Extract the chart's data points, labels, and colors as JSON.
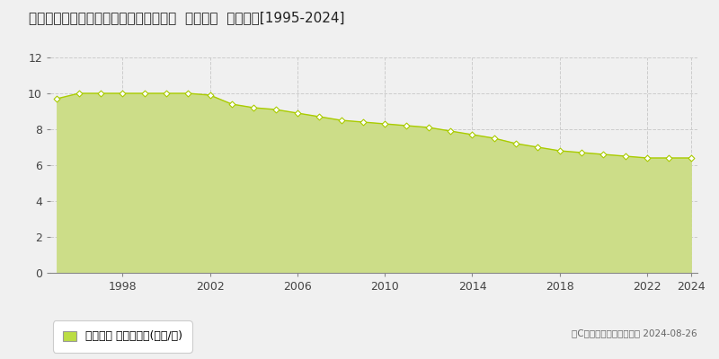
{
  "title": "鳳取県鳳取市馬場字東屋敷２７４番２外  地価公示  地価推移[1995-2024]",
  "years": [
    1995,
    1996,
    1997,
    1998,
    1999,
    2000,
    2001,
    2002,
    2003,
    2004,
    2005,
    2006,
    2007,
    2008,
    2009,
    2010,
    2011,
    2012,
    2013,
    2014,
    2015,
    2016,
    2017,
    2018,
    2019,
    2020,
    2021,
    2022,
    2023,
    2024
  ],
  "values": [
    9.7,
    10.0,
    10.0,
    10.0,
    10.0,
    10.0,
    10.0,
    9.9,
    9.4,
    9.2,
    9.1,
    8.9,
    8.7,
    8.5,
    8.4,
    8.3,
    8.2,
    8.1,
    7.9,
    7.7,
    7.5,
    7.2,
    7.0,
    6.8,
    6.7,
    6.6,
    6.5,
    6.4,
    6.4,
    6.4
  ],
  "line_color": "#aacc00",
  "fill_color": "#ccdd88",
  "marker_facecolor": "#ffffff",
  "marker_edgecolor": "#aacc00",
  "background_color": "#f0f0f0",
  "plot_bg_color": "#f0f0f0",
  "grid_color": "#cccccc",
  "ylim": [
    0,
    12
  ],
  "yticks": [
    0,
    2,
    4,
    6,
    8,
    10,
    12
  ],
  "xticks": [
    1998,
    2002,
    2006,
    2010,
    2014,
    2018,
    2022,
    2024
  ],
  "legend_label": "地価公示 平均坊単価(万円/坊)",
  "legend_color": "#bbdd44",
  "copyright_text": "（C）土地価格ドットコム 2024-08-26",
  "title_fontsize": 11,
  "axis_fontsize": 9,
  "legend_fontsize": 9
}
